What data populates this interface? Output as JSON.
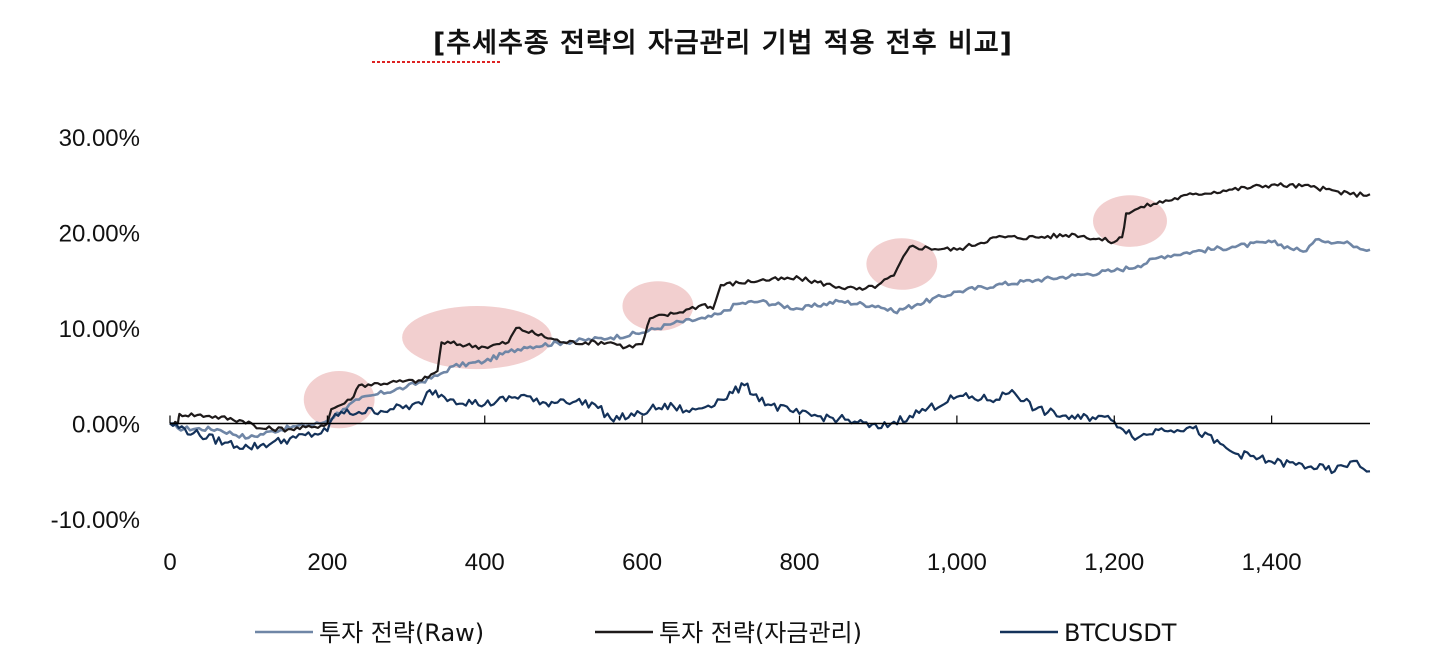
{
  "chart_data": {
    "type": "line",
    "title": "[추세추종 전략의 자금관리 기법 적용 전후 비교]",
    "xlabel": "",
    "ylabel": "",
    "xlim": [
      0,
      1525
    ],
    "ylim": [
      -10,
      30
    ],
    "x_ticks": [
      0,
      200,
      400,
      600,
      800,
      1000,
      1200,
      1400
    ],
    "x_tick_labels": [
      "0",
      "200",
      "400",
      "600",
      "800",
      "1,000",
      "1,200",
      "1,400"
    ],
    "y_ticks": [
      30,
      20,
      10,
      0,
      -10
    ],
    "y_tick_labels": [
      "30.00%",
      "20.00%",
      "10.00%",
      "0.00%",
      "-10.00%"
    ],
    "grid": false,
    "legend_position": "bottom",
    "series": [
      {
        "name": "투자 전략(Raw)",
        "color": "#6f86a6",
        "x": [
          0,
          10,
          60,
          100,
          130,
          160,
          190,
          200,
          220,
          240,
          260,
          300,
          340,
          360,
          400,
          430,
          450,
          500,
          560,
          600,
          640,
          680,
          700,
          720,
          750,
          800,
          850,
          900,
          920,
          950,
          1000,
          1050,
          1100,
          1150,
          1200,
          1230,
          1260,
          1300,
          1350,
          1400,
          1440,
          1460,
          1500,
          1525
        ],
        "y": [
          0,
          -0.5,
          -0.6,
          -1.5,
          -0.8,
          -0.3,
          0,
          0.3,
          1.5,
          2.5,
          3.0,
          3.8,
          5.0,
          6.0,
          6.5,
          7.5,
          8.0,
          8.5,
          9.0,
          9.5,
          10.5,
          11.0,
          11.5,
          12.5,
          12.8,
          12.0,
          12.8,
          12.3,
          11.7,
          12.5,
          13.8,
          14.5,
          15.0,
          15.5,
          16.0,
          16.5,
          17.5,
          18.0,
          18.5,
          19.0,
          18.0,
          19.3,
          18.8,
          18.2
        ]
      },
      {
        "name": "투자 전략(자금관리)",
        "color": "#1e1a1a",
        "x": [
          0,
          10,
          12,
          50,
          100,
          110,
          150,
          180,
          200,
          205,
          230,
          240,
          280,
          320,
          340,
          345,
          400,
          430,
          440,
          500,
          560,
          580,
          600,
          610,
          640,
          660,
          680,
          690,
          700,
          750,
          800,
          850,
          880,
          900,
          920,
          940,
          1000,
          1050,
          1100,
          1150,
          1200,
          1210,
          1215,
          1230,
          1250,
          1300,
          1350,
          1400,
          1450,
          1500,
          1525
        ],
        "y": [
          0,
          0,
          1.0,
          0.8,
          0.2,
          -0.5,
          -0.6,
          -0.4,
          0,
          1.5,
          2.5,
          4.0,
          4.3,
          4.5,
          5.5,
          8.5,
          8.0,
          8.5,
          10.0,
          8.5,
          8.5,
          8.0,
          8.3,
          11.0,
          11.5,
          12.0,
          12.5,
          12.0,
          14.5,
          15.0,
          15.2,
          14.3,
          14.0,
          14.5,
          15.5,
          18.5,
          18.2,
          19.5,
          19.5,
          19.8,
          19.0,
          19.5,
          22.0,
          22.5,
          23.0,
          24.0,
          24.5,
          25.0,
          24.8,
          24.0,
          24.0
        ]
      },
      {
        "name": "BTCUSDT",
        "color": "#14325a",
        "x": [
          0,
          30,
          70,
          100,
          130,
          160,
          200,
          210,
          240,
          280,
          320,
          330,
          360,
          400,
          450,
          470,
          500,
          540,
          560,
          590,
          610,
          640,
          660,
          700,
          730,
          760,
          800,
          850,
          870,
          900,
          940,
          1000,
          1050,
          1070,
          1100,
          1150,
          1180,
          1200,
          1230,
          1260,
          1300,
          1350,
          1400,
          1450,
          1480,
          1500,
          1525
        ],
        "y": [
          0,
          -1.0,
          -2.0,
          -2.5,
          -2.0,
          -1.5,
          -0.8,
          1.0,
          1.2,
          1.5,
          2.0,
          3.5,
          2.5,
          2.0,
          3.0,
          2.0,
          2.5,
          2.0,
          0.5,
          0.8,
          1.5,
          1.8,
          1.2,
          2.5,
          4.0,
          2.0,
          1.0,
          0.5,
          0.2,
          -0.5,
          0.8,
          2.8,
          2.5,
          3.5,
          1.5,
          0.5,
          0.8,
          0.2,
          -1.5,
          -0.5,
          -0.5,
          -3.0,
          -4.0,
          -4.5,
          -5.0,
          -4.0,
          -5.0
        ]
      }
    ],
    "annotations": [
      {
        "shape": "ellipse",
        "x": 215,
        "y": 2.5,
        "rx": 45,
        "ry": 3.0
      },
      {
        "shape": "ellipse",
        "x": 390,
        "y": 9.0,
        "rx": 95,
        "ry": 3.3
      },
      {
        "shape": "ellipse",
        "x": 620,
        "y": 12.3,
        "rx": 45,
        "ry": 2.6
      },
      {
        "shape": "ellipse",
        "x": 930,
        "y": 16.7,
        "rx": 45,
        "ry": 2.7
      },
      {
        "shape": "ellipse",
        "x": 1220,
        "y": 21.2,
        "rx": 47,
        "ry": 2.7
      }
    ],
    "annotation_color": "#e8a8a8"
  }
}
